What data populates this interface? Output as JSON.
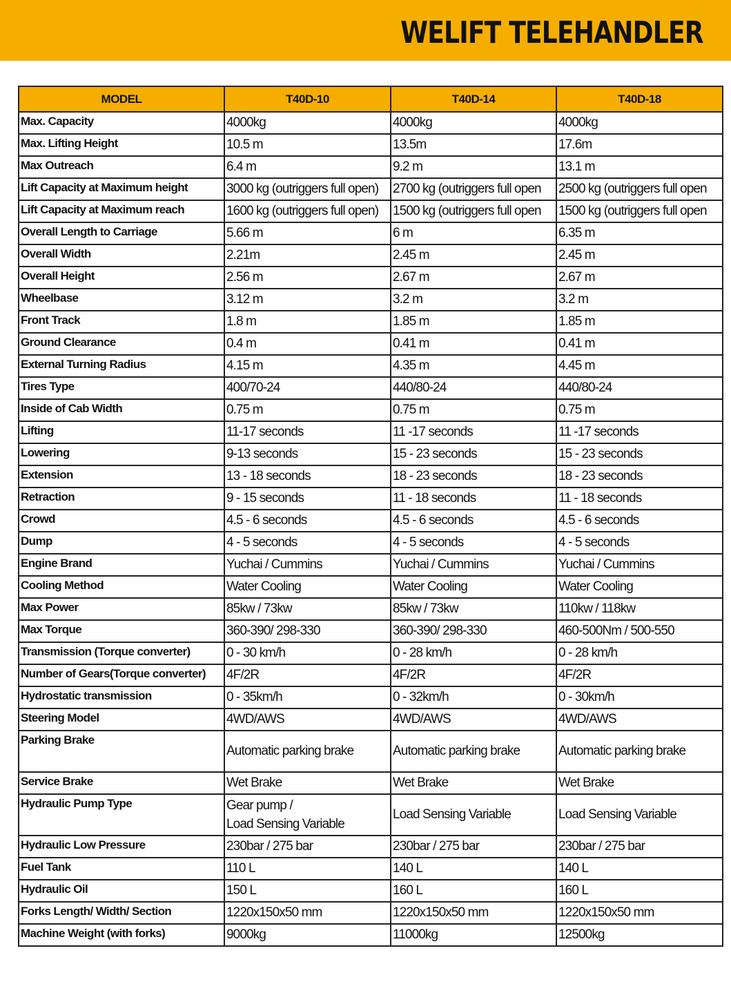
{
  "banner": {
    "title": "WELIFT TELEHANDLER",
    "color": "#f5ae00"
  },
  "table": {
    "headers": [
      "MODEL",
      "T40D-10",
      "T40D-14",
      "T40D-18"
    ],
    "rows": [
      {
        "label": "Max. Capacity",
        "values": [
          "4000kg",
          "4000kg",
          "4000kg"
        ]
      },
      {
        "label": "Max. Lifting Height",
        "values": [
          "10.5 m",
          "13.5m",
          "17.6m"
        ]
      },
      {
        "label": "Max Outreach",
        "values": [
          "6.4 m",
          "9.2 m",
          "13.1 m"
        ]
      },
      {
        "label": "Lift Capacity at Maximum height",
        "values": [
          "3000 kg (outriggers full open)",
          "2700 kg (outriggers full open",
          "2500 kg (outriggers full open"
        ]
      },
      {
        "label": "Lift Capacity at Maximum reach",
        "values": [
          "1600 kg (outriggers full open)",
          "1500 kg (outriggers full open",
          "1500 kg (outriggers full open"
        ]
      },
      {
        "label": "Overall Length to Carriage",
        "values": [
          "5.66 m",
          "6 m",
          "6.35 m"
        ]
      },
      {
        "label": "Overall Width",
        "values": [
          "2.21m",
          "2.45 m",
          "2.45 m"
        ]
      },
      {
        "label": "Overall Height",
        "values": [
          "2.56 m",
          "2.67 m",
          "2.67 m"
        ]
      },
      {
        "label": "Wheelbase",
        "values": [
          "3.12 m",
          "3.2 m",
          "3.2 m"
        ]
      },
      {
        "label": "Front Track",
        "values": [
          "1.8 m",
          "1.85 m",
          "1.85 m"
        ]
      },
      {
        "label": "Ground Clearance",
        "values": [
          "0.4 m",
          "0.41 m",
          "0.41 m"
        ]
      },
      {
        "label": "External Turning Radius",
        "values": [
          "4.15 m",
          "4.35 m",
          "4.45 m"
        ]
      },
      {
        "label": "Tires Type",
        "values": [
          "400/70-24",
          "440/80-24",
          "440/80-24"
        ]
      },
      {
        "label": "Inside of Cab Width",
        "values": [
          "0.75 m",
          "0.75 m",
          "0.75 m"
        ]
      },
      {
        "label": "Lifting",
        "values": [
          "11-17 seconds",
          "11 -17 seconds",
          "11 -17 seconds"
        ]
      },
      {
        "label": "Lowering",
        "values": [
          "9-13 seconds",
          "15 - 23 seconds",
          "15 - 23 seconds"
        ]
      },
      {
        "label": "Extension",
        "values": [
          "13 - 18 seconds",
          "18 - 23 seconds",
          "18 - 23 seconds"
        ]
      },
      {
        "label": "Retraction",
        "values": [
          "9 - 15 seconds",
          "11 - 18 seconds",
          "11 - 18 seconds"
        ]
      },
      {
        "label": "Crowd",
        "values": [
          "4.5 - 6 seconds",
          "4.5 - 6 seconds",
          "4.5 - 6 seconds"
        ]
      },
      {
        "label": "Dump",
        "values": [
          "4 - 5 seconds",
          "4 - 5 seconds",
          "4 - 5 seconds"
        ]
      },
      {
        "label": "Engine Brand",
        "values": [
          "Yuchai / Cummins",
          "Yuchai / Cummins",
          "Yuchai / Cummins"
        ]
      },
      {
        "label": "Cooling Method",
        "values": [
          "Water Cooling",
          "Water Cooling",
          "Water Cooling"
        ]
      },
      {
        "label": "Max Power",
        "values": [
          "85kw /  73kw",
          "85kw /  73kw",
          "110kw /  118kw"
        ]
      },
      {
        "label": "Max Torque",
        "values": [
          "360-390/  298-330",
          "360-390/  298-330",
          "460-500Nm /  500-550"
        ]
      },
      {
        "label": "Transmission (Torque converter)",
        "values": [
          "0 - 30 km/h",
          "0 - 28 km/h",
          "0 - 28 km/h"
        ]
      },
      {
        "label": "Number of Gears(Torque converter)",
        "values": [
          "4F/2R",
          "4F/2R",
          "4F/2R"
        ]
      },
      {
        "label": "Hydrostatic transmission",
        "values": [
          "0 - 35km/h",
          "0 - 32km/h",
          "0 - 30km/h"
        ]
      },
      {
        "label": "Steering Model",
        "values": [
          "4WD/AWS",
          "4WD/AWS",
          "4WD/AWS"
        ]
      },
      {
        "label": "Parking Brake",
        "tall": true,
        "values": [
          "Automatic parking brake",
          "Automatic parking brake",
          "Automatic parking brake"
        ]
      },
      {
        "label": "Service Brake",
        "values": [
          "Wet Brake",
          "Wet Brake",
          "Wet Brake"
        ]
      },
      {
        "label": "Hydraulic Pump Type",
        "tall": true,
        "values": [
          "Gear pump /\nLoad Sensing Variable",
          "Load Sensing Variable",
          "Load Sensing Variable"
        ]
      },
      {
        "label": "Hydraulic Low Pressure",
        "values": [
          "230bar / 275 bar",
          "230bar / 275 bar",
          "230bar / 275 bar"
        ]
      },
      {
        "label": "Fuel Tank",
        "values": [
          "110 L",
          "140 L",
          "140 L"
        ]
      },
      {
        "label": "Hydraulic Oil",
        "values": [
          "150 L",
          "160 L",
          "160 L"
        ]
      },
      {
        "label": "Forks Length/ Width/ Section",
        "values": [
          "1220x150x50 mm",
          "1220x150x50 mm",
          "1220x150x50 mm"
        ]
      },
      {
        "label": "Machine Weight (with forks)",
        "values": [
          "9000kg",
          "11000kg",
          "12500kg"
        ]
      }
    ]
  }
}
